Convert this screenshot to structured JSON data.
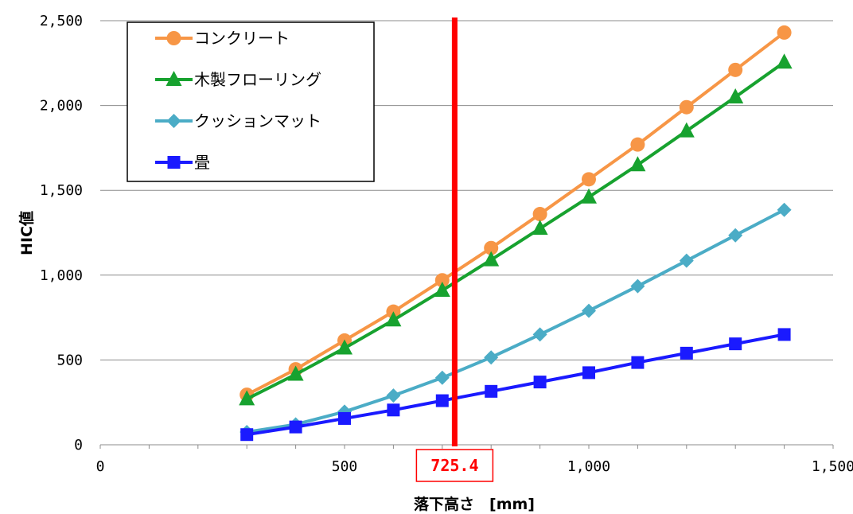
{
  "chart_data": {
    "type": "line",
    "xlabel": "落下高さ　[mm]",
    "ylabel": "HIC値",
    "xlim": [
      0,
      1500
    ],
    "ylim": [
      0,
      2500
    ],
    "x_ticks": [
      0,
      500,
      1000,
      1500
    ],
    "x_tick_labels": [
      "0",
      "500",
      "1,000",
      "1,500"
    ],
    "y_ticks": [
      0,
      500,
      1000,
      1500,
      2000,
      2500
    ],
    "y_tick_labels": [
      "0",
      "500",
      "1,000",
      "1,500",
      "2,000",
      "2,500"
    ],
    "grid": "horizontal",
    "legend_position": "top-left",
    "x": [
      300,
      400,
      500,
      600,
      700,
      800,
      900,
      1000,
      1100,
      1200,
      1300,
      1400
    ],
    "series": [
      {
        "name": "コンクリート",
        "color": "#f79646",
        "marker": "circle",
        "values": [
          295,
          445,
          615,
          785,
          970,
          1160,
          1360,
          1565,
          1770,
          1990,
          2210,
          2430
        ]
      },
      {
        "name": "木製フローリング",
        "color": "#17a22f",
        "marker": "triangle",
        "values": [
          270,
          415,
          570,
          735,
          910,
          1090,
          1275,
          1460,
          1650,
          1850,
          2050,
          2255
        ]
      },
      {
        "name": "クッションマット",
        "color": "#4bacc6",
        "marker": "diamond",
        "values": [
          75,
          120,
          195,
          290,
          395,
          515,
          650,
          790,
          935,
          1085,
          1235,
          1385
        ]
      },
      {
        "name": "畳",
        "color": "#1a1aff",
        "marker": "square",
        "values": [
          60,
          105,
          155,
          205,
          260,
          315,
          370,
          425,
          485,
          540,
          595,
          650
        ]
      }
    ],
    "annotation": {
      "x": 725.4,
      "label": "725.4",
      "color": "#ff0000"
    }
  }
}
